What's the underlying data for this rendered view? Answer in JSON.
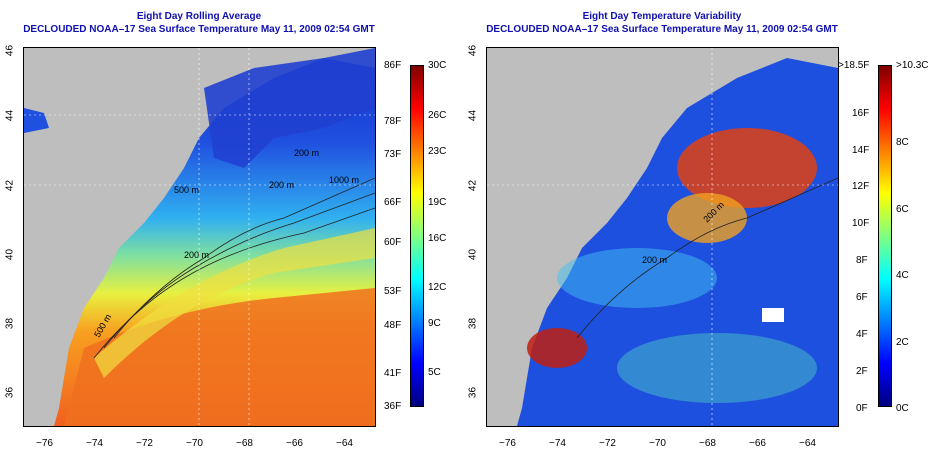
{
  "left": {
    "title_line1": "Eight Day Rolling Average",
    "title_line2": "DECLOUDED NOAA–17 Sea Surface Temperature May 11, 2009 02:54 GMT",
    "contour_labels": [
      "200 m",
      "500 m",
      "200 m",
      "200 m",
      "1000 m",
      "500 m"
    ],
    "colorbar": {
      "celsius": [
        "30C",
        "26C",
        "23C",
        "19C",
        "16C",
        "12C",
        "9C",
        "5C"
      ],
      "fahrenheit": [
        "86F",
        "78F",
        "73F",
        "66F",
        "60F",
        "53F",
        "48F",
        "41F",
        "36F"
      ]
    }
  },
  "right": {
    "title_line1": "Eight Day Temperature Variability",
    "title_line2": "DECLOUDED NOAA–17 Sea Surface Temperature May 11, 2009 02:54 GMT",
    "contour_labels": [
      "200 m",
      "200 m"
    ],
    "colorbar": {
      "celsius": [
        ">10.3C",
        "8C",
        "6C",
        "4C",
        "2C",
        "0C"
      ],
      "fahrenheit": [
        ">18.5F",
        "16F",
        "14F",
        "12F",
        "10F",
        "8F",
        "6F",
        "4F",
        "2F",
        "0F"
      ]
    }
  },
  "axes": {
    "x_ticks": [
      "−76",
      "−74",
      "−72",
      "−70",
      "−68",
      "−66",
      "−64"
    ],
    "y_ticks": [
      "36",
      "38",
      "40",
      "42",
      "44",
      "46"
    ]
  },
  "colors": {
    "title": "#1010b0",
    "land": "#bebebe",
    "sst_scale": [
      "#00007f",
      "#0000ff",
      "#0080ff",
      "#00ffff",
      "#80ff80",
      "#ffff00",
      "#ff8000",
      "#ff0000",
      "#7f0000"
    ]
  }
}
